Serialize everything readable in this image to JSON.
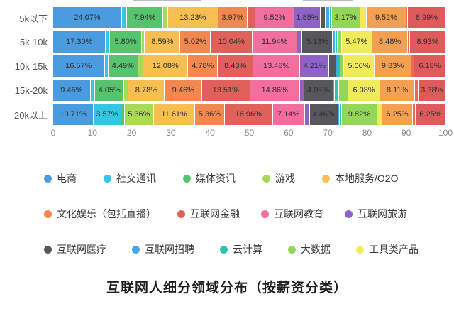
{
  "chart_data": {
    "type": "bar",
    "orientation": "horizontal-stacked",
    "title": "互联网人细分领域分布（按薪资分类）",
    "categories": [
      "5k以下",
      "5k-10k",
      "10k-15k",
      "15k-20k",
      "20k以上"
    ],
    "x_axis": {
      "min": 0,
      "max": 100,
      "ticks": [
        "0",
        "10",
        "20",
        "30",
        "40",
        "50",
        "60",
        "70",
        "80",
        "90",
        "100"
      ]
    },
    "grid": false,
    "legend_position": "bottom",
    "palette": {
      "blue": "#4A9BE0",
      "cyan": "#33C7E3",
      "green": "#57C46D",
      "lightgreen": "#A9D957",
      "amber": "#F7BE52",
      "orange": "#F1884F",
      "red": "#DF6159",
      "pink": "#F26E9D",
      "purple": "#8F63C5",
      "gray": "#57575B",
      "lightblue": "#45A5E6",
      "teal": "#2EC5AE",
      "lightgreen2": "#94D65A",
      "yellow": "#EFEB5B",
      "orange2": "#F5A050",
      "tomato": "#EF6A4D",
      "red2": "#DF5B5B"
    },
    "rows": [
      {
        "label": "5k以下",
        "segments": [
          {
            "color": "blue",
            "value": 24.07,
            "label": "24.07%"
          },
          {
            "color": "cyan",
            "value": 2.3
          },
          {
            "color": "green",
            "value": 7.94,
            "label": "7.94%"
          },
          {
            "color": "lightgreen",
            "value": 2.4
          },
          {
            "color": "amber",
            "value": 13.23,
            "label": "13.23%"
          },
          {
            "color": "orange",
            "value": 3.97,
            "label": "3.97%"
          },
          {
            "color": "red",
            "value": 3.8
          },
          {
            "color": "pink",
            "value": 9.52,
            "label": "9.52%"
          },
          {
            "color": "purple",
            "value": 1.85,
            "label": "1.85%"
          },
          {
            "color": "gray",
            "value": 2.6
          },
          {
            "color": "lightblue",
            "value": 1.8
          },
          {
            "color": "teal",
            "value": 0.9
          },
          {
            "color": "lightgreen2",
            "value": 3.17,
            "label": "3.17%"
          },
          {
            "color": "yellow",
            "value": 3.5
          },
          {
            "color": "orange2",
            "value": 9.52,
            "label": "9.52%"
          },
          {
            "color": "tomato",
            "value": 0.5
          },
          {
            "color": "red2",
            "value": 8.99,
            "label": "8.99%"
          }
        ]
      },
      {
        "label": "5k-10k",
        "segments": [
          {
            "color": "blue",
            "value": 17.3,
            "label": "17.30%"
          },
          {
            "color": "cyan",
            "value": 2.4
          },
          {
            "color": "green",
            "value": 5.8,
            "label": "5.80%"
          },
          {
            "color": "lightgreen",
            "value": 1.7
          },
          {
            "color": "amber",
            "value": 8.59,
            "label": "8.59%"
          },
          {
            "color": "orange",
            "value": 5.02,
            "label": "5.02%"
          },
          {
            "color": "red",
            "value": 10.04,
            "label": "10.04%"
          },
          {
            "color": "pink",
            "value": 11.94,
            "label": "11.94%"
          },
          {
            "color": "purple",
            "value": 3.2
          },
          {
            "color": "gray",
            "value": 5.13,
            "label": "5.13%"
          },
          {
            "color": "lightblue",
            "value": 1.4
          },
          {
            "color": "teal",
            "value": 0.8
          },
          {
            "color": "lightgreen2",
            "value": 2.2
          },
          {
            "color": "yellow",
            "value": 5.47,
            "label": "5.47%"
          },
          {
            "color": "orange2",
            "value": 8.48,
            "label": "8.48%"
          },
          {
            "color": "tomato",
            "value": 1.0
          },
          {
            "color": "red2",
            "value": 8.93,
            "label": "8.93%"
          }
        ]
      },
      {
        "label": "10k-15k",
        "segments": [
          {
            "color": "blue",
            "value": 16.57,
            "label": "16.57%"
          },
          {
            "color": "cyan",
            "value": 2.2
          },
          {
            "color": "green",
            "value": 4.49,
            "label": "4.49%"
          },
          {
            "color": "lightgreen",
            "value": 3.1
          },
          {
            "color": "amber",
            "value": 12.08,
            "label": "12.08%"
          },
          {
            "color": "orange",
            "value": 4.78,
            "label": "4.78%"
          },
          {
            "color": "red",
            "value": 8.43,
            "label": "8.43%"
          },
          {
            "color": "pink",
            "value": 13.48,
            "label": "13.48%"
          },
          {
            "color": "purple",
            "value": 4.21,
            "label": "4.21%"
          },
          {
            "color": "gray",
            "value": 4.2
          },
          {
            "color": "lightblue",
            "value": 0.9
          },
          {
            "color": "teal",
            "value": 1.0
          },
          {
            "color": "lightgreen2",
            "value": 2.1
          },
          {
            "color": "yellow",
            "value": 5.06,
            "label": "5.06%"
          },
          {
            "color": "orange2",
            "value": 9.83,
            "label": "9.83%"
          },
          {
            "color": "tomato",
            "value": 1.3
          },
          {
            "color": "red2",
            "value": 6.18,
            "label": "6.18%"
          }
        ]
      },
      {
        "label": "15k-20k",
        "segments": [
          {
            "color": "blue",
            "value": 9.46,
            "label": "9.46%"
          },
          {
            "color": "cyan",
            "value": 2.6
          },
          {
            "color": "green",
            "value": 4.05,
            "label": "4.05%"
          },
          {
            "color": "lightgreen",
            "value": 2.4
          },
          {
            "color": "amber",
            "value": 8.78,
            "label": "8.78%"
          },
          {
            "color": "orange",
            "value": 9.46,
            "label": "9.46%"
          },
          {
            "color": "red",
            "value": 13.51,
            "label": "13.51%"
          },
          {
            "color": "pink",
            "value": 14.86,
            "label": "14.86%"
          },
          {
            "color": "purple",
            "value": 2.2
          },
          {
            "color": "gray",
            "value": 4.05,
            "label": "4.05%"
          },
          {
            "color": "lightblue",
            "value": 0.8
          },
          {
            "color": "teal",
            "value": 2.1
          },
          {
            "color": "lightgreen2",
            "value": 5.6
          },
          {
            "color": "yellow",
            "value": 6.08,
            "label": "6.08%"
          },
          {
            "color": "orange2",
            "value": 8.11,
            "label": "8.11%"
          },
          {
            "color": "tomato",
            "value": 1.6
          },
          {
            "color": "red2",
            "value": 3.38,
            "label": "3.38%"
          }
        ]
      },
      {
        "label": "20k以上",
        "segments": [
          {
            "color": "blue",
            "value": 10.71,
            "label": "10.71%"
          },
          {
            "color": "cyan",
            "value": 3.57,
            "label": "3.57%"
          },
          {
            "color": "green",
            "value": 2.2
          },
          {
            "color": "lightgreen",
            "value": 5.36,
            "label": "5.36%"
          },
          {
            "color": "amber",
            "value": 11.61,
            "label": "11.61%"
          },
          {
            "color": "orange",
            "value": 5.36,
            "label": "5.36%"
          },
          {
            "color": "red",
            "value": 16.96,
            "label": "16.96%"
          },
          {
            "color": "pink",
            "value": 7.14,
            "label": "7.14%"
          },
          {
            "color": "purple",
            "value": 3.4
          },
          {
            "color": "gray",
            "value": 4.46,
            "label": "4.46%"
          },
          {
            "color": "lightblue",
            "value": 0.8
          },
          {
            "color": "teal",
            "value": 1.2
          },
          {
            "color": "lightgreen2",
            "value": 9.82,
            "label": "9.82%"
          },
          {
            "color": "yellow",
            "value": 3.6
          },
          {
            "color": "orange2",
            "value": 6.25,
            "label": "6.25%"
          },
          {
            "color": "tomato",
            "value": 1.5
          },
          {
            "color": "red2",
            "value": 6.25,
            "label": "6.25%"
          }
        ]
      }
    ],
    "legend_rows": [
      [
        {
          "label": "电商",
          "color": "blue"
        },
        {
          "label": "社交通讯",
          "color": "cyan"
        },
        {
          "label": "媒体资讯",
          "color": "green"
        },
        {
          "label": "游戏",
          "color": "lightgreen"
        },
        {
          "label": "本地服务/O2O",
          "color": "amber"
        }
      ],
      [
        {
          "label": "文化娱乐（包括直播）",
          "color": "orange"
        },
        {
          "label": "互联网金融",
          "color": "red"
        },
        {
          "label": "互联网教育",
          "color": "pink"
        },
        {
          "label": "互联网旅游",
          "color": "purple"
        }
      ],
      [
        {
          "label": "互联网医疗",
          "color": "gray"
        },
        {
          "label": "互联网招聘",
          "color": "lightblue"
        },
        {
          "label": "云计算",
          "color": "teal"
        },
        {
          "label": "大数据",
          "color": "lightgreen2"
        },
        {
          "label": "工具类产品",
          "color": "yellow"
        }
      ]
    ]
  }
}
